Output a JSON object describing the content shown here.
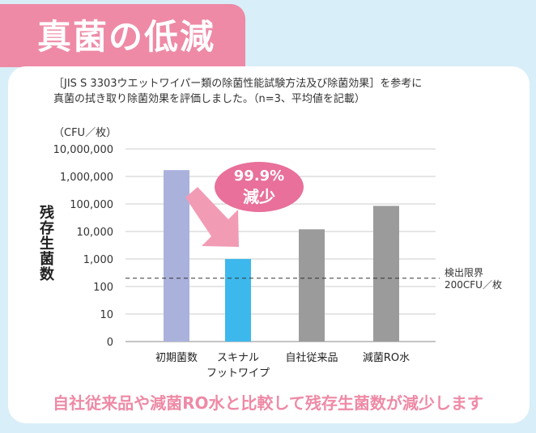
{
  "header": {
    "title": "真菌の低減"
  },
  "description": {
    "line1": "［JIS S 3303ウエットワイパー類の除菌性能試験方法及び除菌効果］を参考に",
    "line2": "真菌の拭き取り除菌効果を評価しました。（n=3、平均値を記載）"
  },
  "footer_text": "自社従来品や減菌RO水と比較して残存生菌数が減少します",
  "colors": {
    "accent": "#ee8aa6",
    "background": "#d8eef8",
    "badge": "#e8709a"
  },
  "chart_data": {
    "type": "bar",
    "yscale": "log",
    "title": "",
    "ylabel": "残存生菌数",
    "unit": "（CFU／枚）",
    "ylim": [
      1,
      10000000
    ],
    "yticks": [
      1,
      10,
      100,
      1000,
      10000,
      100000,
      1000000,
      10000000
    ],
    "ytick_labels": [
      "0",
      "10",
      "100",
      "1,000",
      "10,000",
      "100,000",
      "1,000,000",
      "10,000,000"
    ],
    "categories": [
      {
        "line1": "初期菌数",
        "line2": ""
      },
      {
        "line1": "スキナル",
        "line2": "フットワイプ"
      },
      {
        "line1": "自社従来品",
        "line2": ""
      },
      {
        "line1": "減菌RO水",
        "line2": ""
      }
    ],
    "values": [
      1700000,
      1000,
      12000,
      85000
    ],
    "bar_colors": [
      "#aab2dc",
      "#3db8ec",
      "#9b9b9b",
      "#9b9b9b"
    ],
    "reference_line": {
      "value": 200,
      "label_line1": "検出限界",
      "label_line2": "200CFU／枚"
    },
    "annotation": {
      "line1": "99.9%",
      "line2": "減少"
    }
  }
}
